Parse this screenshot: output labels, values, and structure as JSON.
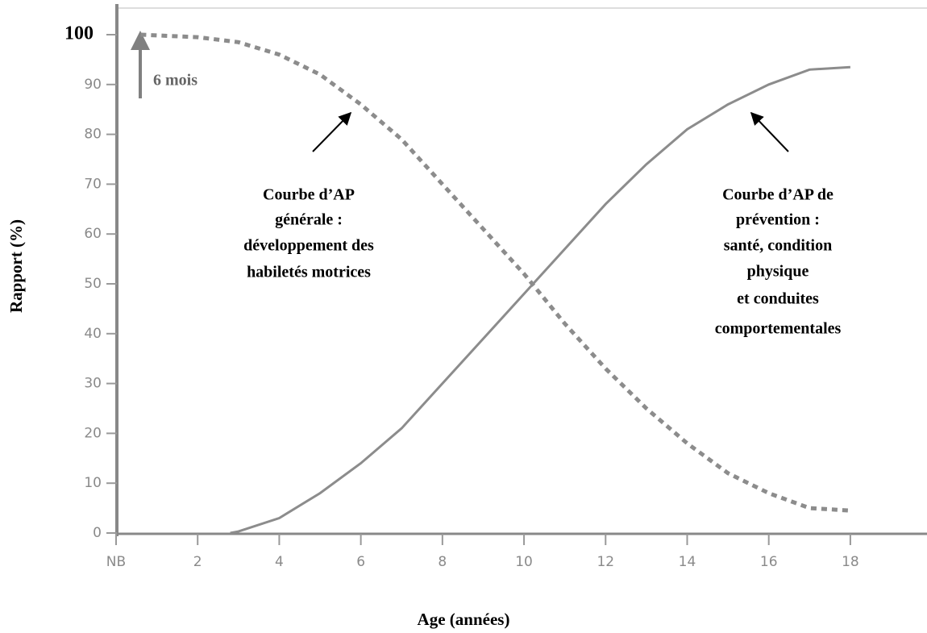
{
  "chart_data": {
    "type": "line",
    "xlabel": "Age (années)",
    "ylabel": "Rapport (%)",
    "xlim": [
      0,
      19.8
    ],
    "ylim": [
      0,
      100
    ],
    "xticks": [
      {
        "value": 0,
        "label": "NB"
      },
      2,
      4,
      6,
      8,
      10,
      12,
      14,
      16,
      18
    ],
    "yticks": [
      0,
      10,
      20,
      30,
      40,
      50,
      60,
      70,
      80,
      90,
      100
    ],
    "grid": false,
    "series": [
      {
        "name": "Courbe d'AP générale",
        "color": "#8c8c8c",
        "dash": true,
        "x": [
          0.6,
          2,
          3,
          4,
          5,
          6,
          7,
          8,
          9,
          10,
          11,
          12,
          13,
          14,
          15,
          16,
          17,
          18
        ],
        "values": [
          100,
          99.5,
          98.5,
          96,
          92,
          86,
          79,
          70,
          61,
          52,
          42,
          33,
          25,
          18,
          12,
          8,
          5,
          4.5
        ]
      },
      {
        "name": "Courbe d'AP de prévention",
        "color": "#8c8c8c",
        "dash": false,
        "x": [
          2.8,
          3,
          4,
          5,
          6,
          7,
          8,
          9,
          10,
          11,
          12,
          13,
          14,
          15,
          16,
          17,
          18
        ],
        "values": [
          0,
          0.3,
          3,
          8,
          14,
          21,
          30,
          39,
          48,
          57,
          66,
          74,
          81,
          86,
          90,
          93,
          93.5
        ]
      }
    ],
    "annotations": [
      {
        "lines": [
          "6 mois"
        ]
      },
      {
        "lines": [
          "Courbe d’AP",
          "générale :",
          "développement des",
          "habiletés motrices"
        ]
      },
      {
        "lines": [
          "Courbe d’AP de",
          "prévention :",
          "santé, condition",
          "physique",
          "et conduites",
          "comportementales"
        ]
      }
    ]
  }
}
